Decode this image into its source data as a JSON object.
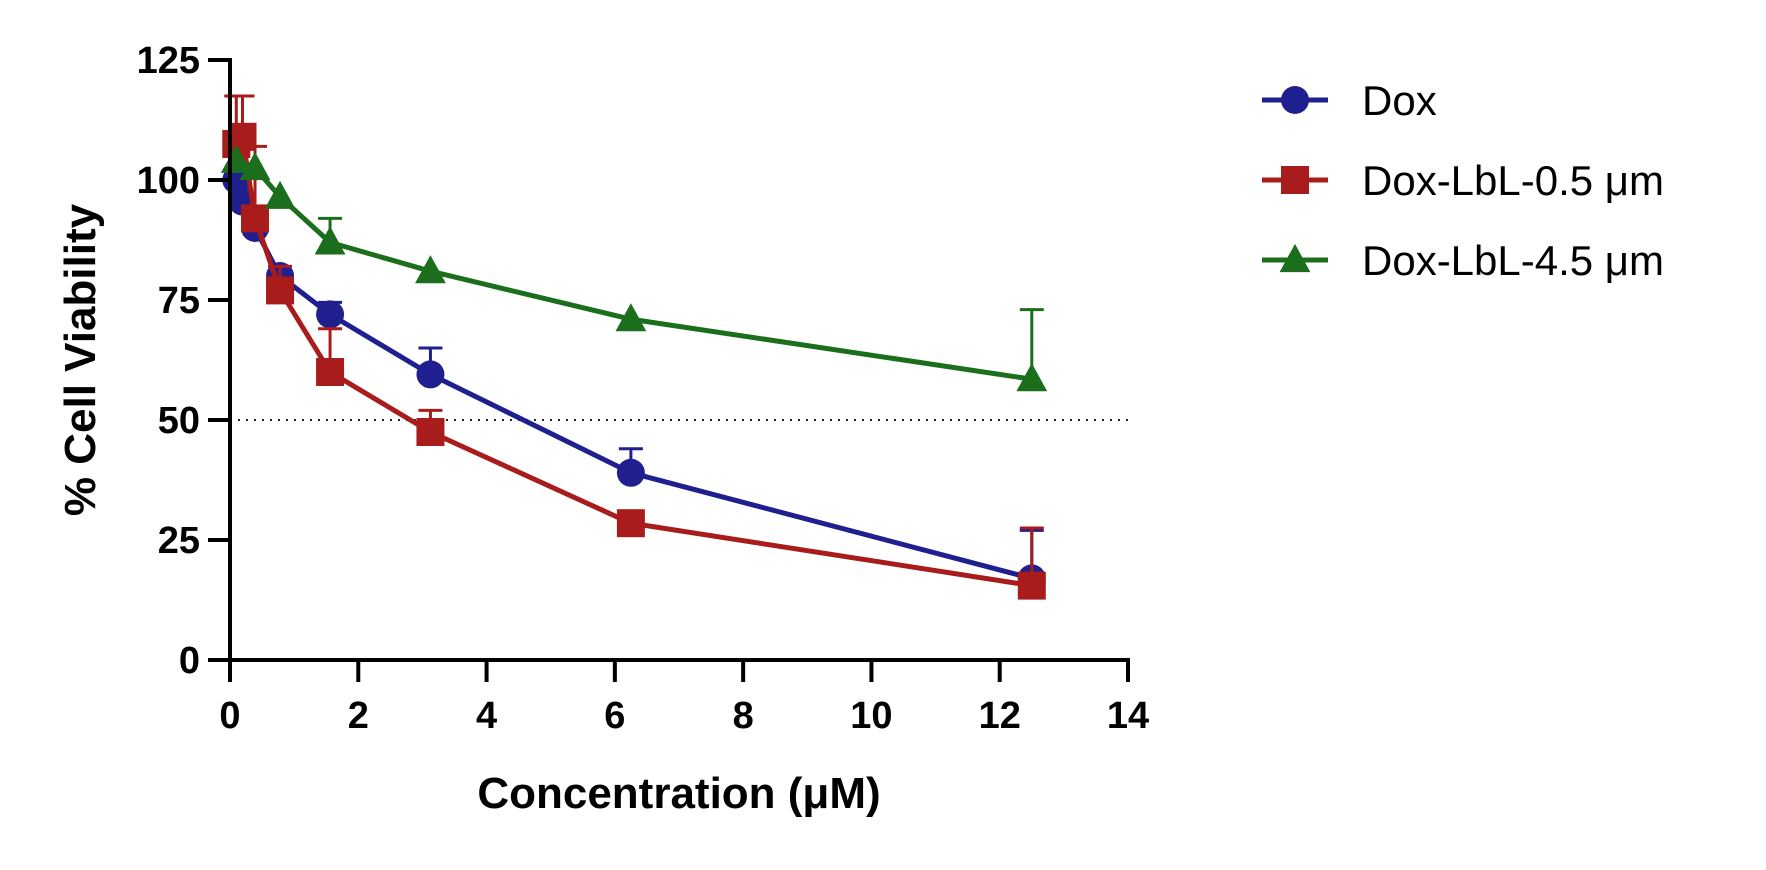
{
  "chart_data": {
    "type": "line",
    "xlabel": "Concentration (μM)",
    "ylabel": "% Cell Viability",
    "xlim": [
      0,
      14
    ],
    "ylim": [
      0,
      125
    ],
    "xticks": [
      "0",
      "2",
      "4",
      "6",
      "8",
      "10",
      "12",
      "14"
    ],
    "yticks": [
      "0",
      "25",
      "50",
      "75",
      "100",
      "125"
    ],
    "reference_line": {
      "y": 50,
      "style": "dotted"
    },
    "grid": false,
    "legend_position": "top-right",
    "series": [
      {
        "name": "Dox",
        "color": "#1f1f8f",
        "marker": "circle",
        "x": [
          0.098,
          0.195,
          0.39,
          0.78,
          1.56,
          3.125,
          6.25,
          12.5
        ],
        "y": [
          100,
          95.5,
          90,
          80,
          72,
          59.5,
          39,
          17
        ],
        "err": [
          0,
          0,
          0,
          0,
          2.5,
          5.5,
          5,
          10
        ]
      },
      {
        "name": "Dox-LbL-0.5 μm",
        "color": "#a81c1c",
        "marker": "square",
        "x": [
          0.098,
          0.195,
          0.39,
          0.78,
          1.56,
          3.125,
          6.25,
          12.5
        ],
        "y": [
          107.5,
          109,
          92,
          77,
          60,
          47.5,
          28.5,
          15.5
        ],
        "err": [
          10,
          8.5,
          15,
          5,
          9,
          4.5,
          0,
          12
        ]
      },
      {
        "name": "Dox-LbL-4.5 μm",
        "color": "#1b6e1b",
        "marker": "triangle",
        "x": [
          0.098,
          0.39,
          0.78,
          1.56,
          3.125,
          6.25,
          12.5
        ],
        "y": [
          104,
          102.5,
          96.5,
          87,
          81,
          71,
          58.5
        ],
        "err": [
          0,
          0,
          0,
          5,
          0,
          0,
          14.5
        ]
      }
    ]
  }
}
